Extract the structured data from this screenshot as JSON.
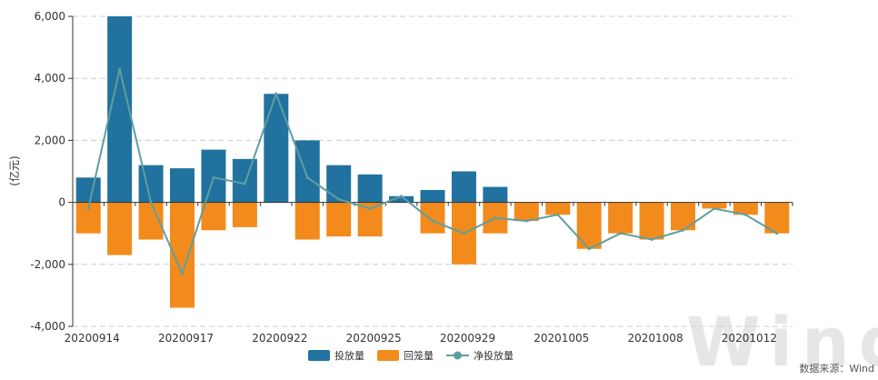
{
  "chart_data": {
    "type": "bar",
    "ylabel": "(亿元)",
    "ylim": [
      -4000,
      6000
    ],
    "yticks": [
      -4000,
      -2000,
      0,
      2000,
      4000,
      6000
    ],
    "ytick_labels": [
      "-4,000",
      "-2,000",
      "0",
      "2,000",
      "4,000",
      "6,000"
    ],
    "grid": true,
    "legend_position": "bottom-center",
    "x_tick_labels": [
      {
        "label": "20200914",
        "index": 0
      },
      {
        "label": "20200917",
        "index": 3
      },
      {
        "label": "20200922",
        "index": 6
      },
      {
        "label": "20200925",
        "index": 9
      },
      {
        "label": "20200929",
        "index": 12
      },
      {
        "label": "20201005",
        "index": 15
      },
      {
        "label": "20201008",
        "index": 18
      },
      {
        "label": "20201012",
        "index": 21
      }
    ],
    "categories_count": 23,
    "series": [
      {
        "name": "投放量",
        "kind": "bar",
        "color": "#21729e",
        "values": [
          800,
          6000,
          1200,
          1100,
          1700,
          1400,
          3500,
          2000,
          1200,
          900,
          200,
          400,
          1000,
          500,
          0,
          0,
          0,
          0,
          0,
          0,
          0,
          0,
          0
        ]
      },
      {
        "name": "回笼量",
        "kind": "bar",
        "color": "#f28b1c",
        "values": [
          -1000,
          -1700,
          -1200,
          -3400,
          -900,
          -800,
          0,
          -1200,
          -1100,
          -1100,
          0,
          -1000,
          -2000,
          -1000,
          -600,
          -400,
          -1500,
          -1000,
          -1200,
          -900,
          -200,
          -400,
          -1000
        ]
      },
      {
        "name": "净投放量",
        "kind": "line",
        "color": "#5f9ea0",
        "values": [
          -200,
          4300,
          0,
          -2300,
          800,
          600,
          3500,
          800,
          100,
          -200,
          200,
          -600,
          -1000,
          -500,
          -600,
          -400,
          -1500,
          -1000,
          -1200,
          -900,
          -200,
          -400,
          -1000
        ]
      }
    ]
  },
  "legend": {
    "items": [
      "投放量",
      "回笼量",
      "净投放量"
    ]
  },
  "source_note": "数据来源：Wind",
  "watermark": "Wind"
}
